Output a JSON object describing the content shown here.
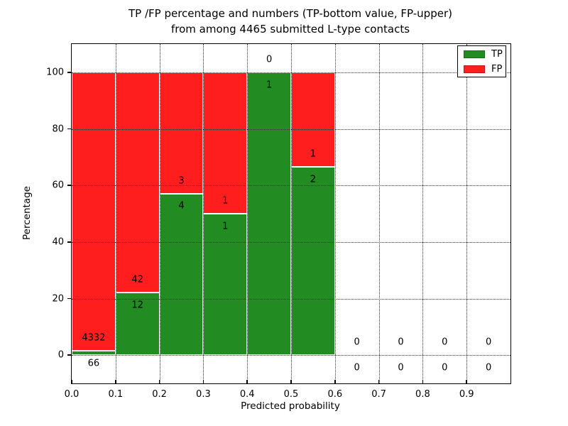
{
  "title": {
    "line1": "TP /FP percentage and numbers (TP-bottom value, FP-upper)",
    "line2": "from among 4465 submitted L-type contacts"
  },
  "chart_data": {
    "type": "bar",
    "subtype": "stacked-percentage-histogram",
    "title": "TP /FP percentage and numbers (TP-bottom value, FP-upper)\nfrom among 4465 submitted L-type contacts",
    "xlabel": "Predicted probability",
    "ylabel": "Percentage",
    "total_contacts": 4465,
    "xlim": [
      0.0,
      1.0
    ],
    "ylim": [
      -10,
      110
    ],
    "xticks": [
      "0.0",
      "0.1",
      "0.2",
      "0.3",
      "0.4",
      "0.5",
      "0.6",
      "0.7",
      "0.8",
      "0.9"
    ],
    "xtick_values": [
      0.0,
      0.1,
      0.2,
      0.3,
      0.4,
      0.5,
      0.6,
      0.7,
      0.8,
      0.9
    ],
    "yticks": [
      "0",
      "20",
      "40",
      "60",
      "80",
      "100"
    ],
    "ytick_values": [
      0,
      20,
      40,
      60,
      80,
      100
    ],
    "grid": {
      "style": "dotted",
      "color": "#333333",
      "above_bars": true
    },
    "bin_width": 0.1,
    "categories": [
      "0.0-0.1",
      "0.1-0.2",
      "0.2-0.3",
      "0.3-0.4",
      "0.4-0.5",
      "0.5-0.6",
      "0.6-0.7",
      "0.7-0.8",
      "0.8-0.9",
      "0.9-1.0"
    ],
    "series": [
      {
        "name": "TP",
        "color": "#228B22",
        "counts": [
          66,
          12,
          4,
          1,
          1,
          2,
          0,
          0,
          0,
          0
        ]
      },
      {
        "name": "FP",
        "color": "#FF1E1E",
        "counts": [
          4332,
          42,
          3,
          1,
          0,
          1,
          0,
          0,
          0,
          0
        ]
      }
    ],
    "tp_percentages": [
      1.5,
      22.22,
      57.14,
      50.0,
      100.0,
      66.67,
      0,
      0,
      0,
      0
    ],
    "legend": {
      "position": "upper-right",
      "entries": [
        {
          "label": "TP",
          "color": "#228B22",
          "edge": "#1a6b1a"
        },
        {
          "label": "FP",
          "color": "#FF1E1E",
          "edge": "#c21515"
        }
      ]
    },
    "label_note": "FP count printed above green top, TP count printed below green top, per bin"
  }
}
